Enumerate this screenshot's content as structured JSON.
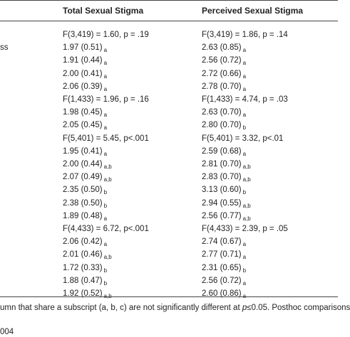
{
  "table": {
    "headers": [
      "Total Sexual Stigma",
      "Perceived Sexual Stigma"
    ],
    "rows": [
      {
        "total": "F(3,419) = 1.60, p = .19",
        "perceived": "F(3,419) = 1.86, p = .14"
      },
      {
        "label": "ss",
        "total": "1.97 (0.51)",
        "total_sub": "a",
        "perceived": "2.63 (0.85)",
        "perceived_sub": "a"
      },
      {
        "total": "1.91 (0.44)",
        "total_sub": "a",
        "perceived": "2.56 (0.72)",
        "perceived_sub": "a"
      },
      {
        "total": "2.00 (0.41)",
        "total_sub": "a",
        "perceived": "2.72 (0.66)",
        "perceived_sub": "a"
      },
      {
        "total": "2.06 (0.39)",
        "total_sub": "a",
        "perceived": "2.78 (0.70)",
        "perceived_sub": "a"
      },
      {
        "total": "F(1,433) = 1.96, p = .16",
        "perceived": "F(1,433) = 4.74, p = .03"
      },
      {
        "total": "1.98 (0.45)",
        "total_sub": "a",
        "perceived": "2.63 (0.70)",
        "perceived_sub": "a"
      },
      {
        "total": "2.05 (0.45)",
        "total_sub": "a",
        "perceived": "2.80 (0.70)",
        "perceived_sub": "b"
      },
      {
        "total": "F(5,401) = 5.45, p<.001",
        "perceived": "F(5,401) = 3.32, p<.01"
      },
      {
        "total": "1.95 (0.41)",
        "total_sub": "a",
        "perceived": "2.59 (0.68)",
        "perceived_sub": "a"
      },
      {
        "total": "2.00 (0.44)",
        "total_sub": "a,b",
        "perceived": "2.81 (0.70)",
        "perceived_sub": "a,b"
      },
      {
        "total": "2.07 (0.49)",
        "total_sub": "a,b",
        "perceived": "2.83 (0.70)",
        "perceived_sub": "a,b"
      },
      {
        "total": "2.35 (0.50)",
        "total_sub": "b",
        "perceived": "3.13 (0.60)",
        "perceived_sub": "b"
      },
      {
        "total": "2.38 (0.50)",
        "total_sub": "b",
        "perceived": "2.94 (0.55)",
        "perceived_sub": "a,b"
      },
      {
        "total": "1.89 (0.48)",
        "total_sub": "a",
        "perceived": "2.56 (0.77)",
        "perceived_sub": "a,b"
      },
      {
        "total": "F(4,433) = 6.72, p<.001",
        "perceived": "F(4,433) = 2.39, p = .05"
      },
      {
        "total": "2.06 (0.42)",
        "total_sub": "a",
        "perceived": "2.74 (0.67)",
        "perceived_sub": "a"
      },
      {
        "total": "2.01 (0.46)",
        "total_sub": "a,b",
        "perceived": "2.77 (0.71)",
        "perceived_sub": "a"
      },
      {
        "total": "1.72 (0.33)",
        "total_sub": "b",
        "perceived": "2.31 (0.65)",
        "perceived_sub": "b"
      },
      {
        "total": "1.88 (0.47)",
        "total_sub": "b",
        "perceived": "2.56 (0.72)",
        "perceived_sub": "a"
      },
      {
        "total": "1.92 (0.52)",
        "total_sub": "a,b",
        "perceived": "2.60 (0.86)",
        "perceived_sub": "a"
      }
    ]
  },
  "footnote": {
    "before": "umn that share a subscript (a, b, c) are not significantly different at ",
    "italic": "p",
    "after": "≤0.05. Posthoc comparisons"
  },
  "footer": {
    "doi": "004"
  }
}
